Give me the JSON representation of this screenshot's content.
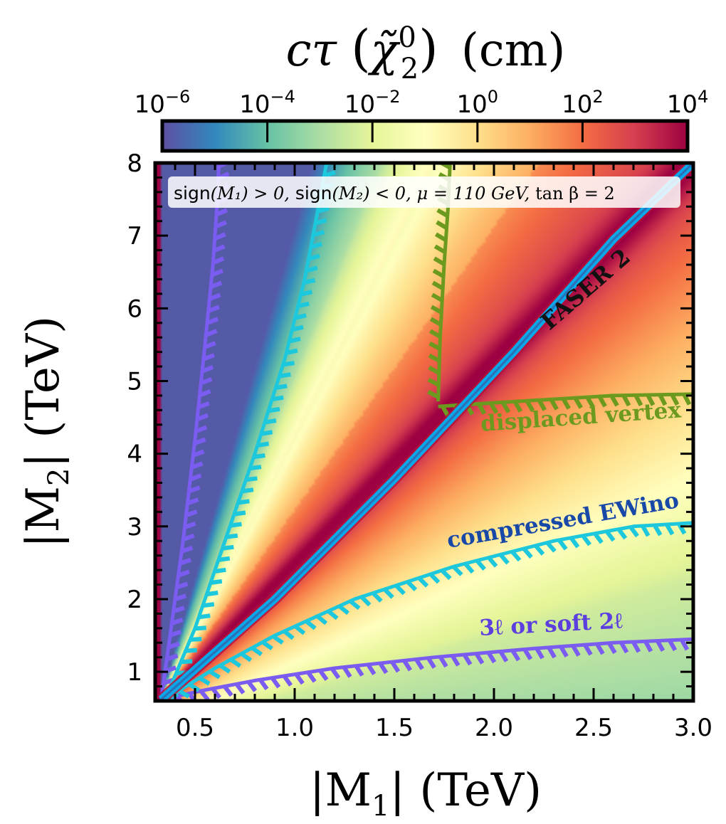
{
  "chart_data": {
    "type": "heatmap",
    "colorbar": {
      "label_main": "cτ",
      "label_symbol": "χ̃",
      "label_sup": "0",
      "label_sub": "2",
      "label_unit": "(cm)",
      "scale": "log",
      "range": [
        1e-06,
        10000.0
      ],
      "tick_exponents": [
        "−6",
        "−4",
        "−2",
        "0",
        "2",
        "4"
      ],
      "tick_base": "10",
      "colormap_stops": [
        "#5e4fa2",
        "#3288bd",
        "#66c2a5",
        "#abdda4",
        "#e6f598",
        "#ffffbf",
        "#fee08b",
        "#fdae61",
        "#f46d43",
        "#d53e4f",
        "#9e0142"
      ]
    },
    "xaxis": {
      "label_pre": "|M",
      "label_sub": "1",
      "label_post": "| (TeV)",
      "range": [
        0.3,
        3.0
      ],
      "ticks": [
        "0.5",
        "1.0",
        "1.5",
        "2.0",
        "2.5",
        "3.0"
      ],
      "tick_values": [
        0.5,
        1.0,
        1.5,
        2.0,
        2.5,
        3.0
      ]
    },
    "yaxis": {
      "label_pre": "|M",
      "label_sub": "2",
      "label_post": "| (TeV)",
      "range": [
        0.6,
        8.0
      ],
      "ticks": [
        "1",
        "2",
        "3",
        "4",
        "5",
        "6",
        "7",
        "8"
      ],
      "tick_values": [
        1,
        2,
        3,
        4,
        5,
        6,
        7,
        8
      ]
    },
    "legend_box": {
      "sign1_a": "sign",
      "sign1_b": "(M₁) > 0,",
      "sign2_a": "sign",
      "sign2_b": "(M₂) < 0,",
      "mu": "μ = 110 GeV,",
      "tanb": "tan β = 2"
    },
    "annotations": {
      "faser": "FASER 2",
      "displaced": "displaced vertex",
      "compressed": "compressed EWino",
      "threel": "3ℓ or soft 2ℓ"
    },
    "contours": [
      {
        "name": "3l-soft-2l",
        "color": "#7b5cf0",
        "x": [
          0.33,
          0.55,
          0.8,
          1.2,
          1.7,
          2.2,
          2.6,
          3.0
        ],
        "y": [
          0.62,
          0.75,
          0.88,
          1.05,
          1.2,
          1.32,
          1.4,
          1.45
        ]
      },
      {
        "name": "3l-soft-2l-upper",
        "color": "#7b5cf0",
        "x": [
          0.33,
          0.38,
          0.44,
          0.5,
          0.55,
          0.59,
          0.61,
          0.62
        ],
        "y": [
          0.62,
          1.6,
          2.8,
          4.2,
          5.5,
          6.6,
          7.4,
          8.0
        ]
      },
      {
        "name": "compressed-ewino",
        "color": "#1ec8dc",
        "x": [
          0.35,
          0.6,
          0.9,
          1.3,
          1.8,
          2.3,
          2.7,
          3.0
        ],
        "y": [
          0.62,
          1.05,
          1.5,
          2.0,
          2.45,
          2.8,
          3.0,
          3.05
        ]
      },
      {
        "name": "compressed-ewino-upper",
        "color": "#1ec8dc",
        "x": [
          0.35,
          0.5,
          0.65,
          0.8,
          0.95,
          1.05,
          1.12,
          1.16
        ],
        "y": [
          0.62,
          1.6,
          2.8,
          4.0,
          5.3,
          6.4,
          7.4,
          8.0
        ]
      },
      {
        "name": "displaced-vertex-vertical",
        "color": "#6b9a1f",
        "x": [
          1.72,
          1.73,
          1.75,
          1.77,
          1.78
        ],
        "y": [
          4.72,
          5.6,
          6.6,
          7.4,
          8.0
        ]
      },
      {
        "name": "displaced-vertex-horizontal",
        "color": "#6b9a1f",
        "x": [
          1.72,
          2.0,
          2.3,
          2.6,
          3.0
        ],
        "y": [
          4.65,
          4.7,
          4.75,
          4.8,
          4.82
        ]
      },
      {
        "name": "faser2-band",
        "color": "#0aa8e8",
        "x": [
          0.33,
          0.9,
          1.5,
          2.1,
          2.6,
          3.0
        ],
        "y": [
          0.62,
          2.0,
          3.65,
          5.4,
          6.95,
          8.0
        ]
      }
    ]
  }
}
